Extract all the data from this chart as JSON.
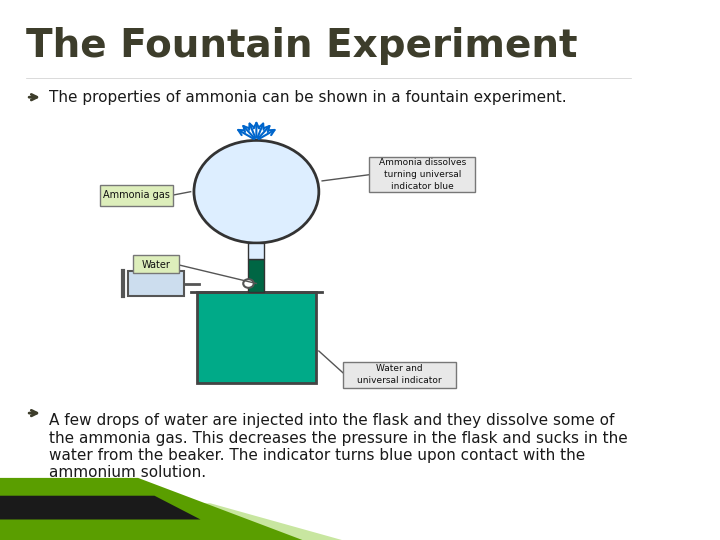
{
  "title": "The Fountain Experiment",
  "title_color": "#3d3d2b",
  "title_fontsize": 28,
  "title_weight": "bold",
  "bullet1": "The properties of ammonia can be shown in a fountain experiment.",
  "bullet2": "A few drops of water are injected into the flask and they dissolve some of\nthe ammonia gas. This decreases the pressure in the flask and sucks in the\nwater from the beaker. The indicator turns blue upon contact with the\nammonium solution.",
  "text_color": "#1a1a1a",
  "text_fontsize": 11,
  "bg_color": "#ffffff",
  "bullet_color": "#3d3d2b",
  "stripe_green_dark": "#5a9e00",
  "stripe_green_light": "#c8e6a0",
  "stripe_black": "#1a1a1a"
}
